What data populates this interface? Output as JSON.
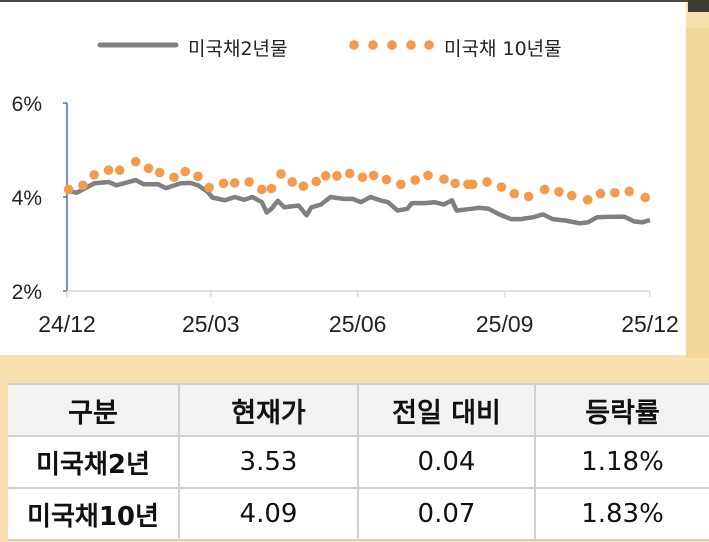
{
  "colors": {
    "series_2y": "#808080",
    "series_10y": "#f59a4a",
    "axis": "#4472c4",
    "background": "#f8dfae"
  },
  "chart_data": {
    "type": "line",
    "title": "",
    "xlabel": "",
    "ylabel": "",
    "ylim": [
      2,
      6
    ],
    "yticks": [
      "2%",
      "4%",
      "6%"
    ],
    "xticks": [
      "24/12",
      "25/03",
      "25/06",
      "25/09",
      "25/12"
    ],
    "xtick_dates": [
      "2024-12-01",
      "2025-03-01",
      "2025-06-01",
      "2025-09-01",
      "2025-12-01"
    ],
    "grid": false,
    "legend": "top",
    "series": [
      {
        "name": "미국채2년물",
        "style": "solid-line",
        "points": [
          [
            "2024-12-01",
            4.14
          ],
          [
            "2024-12-07",
            4.09
          ],
          [
            "2024-12-12",
            4.18
          ],
          [
            "2024-12-18",
            4.29
          ],
          [
            "2024-12-27",
            4.32
          ],
          [
            "2025-01-01",
            4.25
          ],
          [
            "2025-01-13",
            4.36
          ],
          [
            "2025-01-18",
            4.27
          ],
          [
            "2025-01-27",
            4.27
          ],
          [
            "2025-02-01",
            4.19
          ],
          [
            "2025-02-10",
            4.29
          ],
          [
            "2025-02-16",
            4.3
          ],
          [
            "2025-02-21",
            4.25
          ],
          [
            "2025-02-27",
            4.11
          ],
          [
            "2025-03-02",
            3.99
          ],
          [
            "2025-03-10",
            3.93
          ],
          [
            "2025-03-16",
            4.0
          ],
          [
            "2025-03-22",
            3.94
          ],
          [
            "2025-03-27",
            4.0
          ],
          [
            "2025-04-02",
            3.89
          ],
          [
            "2025-04-05",
            3.67
          ],
          [
            "2025-04-08",
            3.75
          ],
          [
            "2025-04-12",
            3.92
          ],
          [
            "2025-04-16",
            3.78
          ],
          [
            "2025-04-25",
            3.82
          ],
          [
            "2025-04-30",
            3.61
          ],
          [
            "2025-05-03",
            3.78
          ],
          [
            "2025-05-09",
            3.84
          ],
          [
            "2025-05-15",
            4.0
          ],
          [
            "2025-05-23",
            3.96
          ],
          [
            "2025-05-29",
            3.96
          ],
          [
            "2025-06-03",
            3.89
          ],
          [
            "2025-06-09",
            4.0
          ],
          [
            "2025-06-15",
            3.93
          ],
          [
            "2025-06-20",
            3.89
          ],
          [
            "2025-06-26",
            3.71
          ],
          [
            "2025-07-02",
            3.75
          ],
          [
            "2025-07-05",
            3.87
          ],
          [
            "2025-07-13",
            3.87
          ],
          [
            "2025-07-19",
            3.89
          ],
          [
            "2025-07-25",
            3.84
          ],
          [
            "2025-07-30",
            3.93
          ],
          [
            "2025-08-02",
            3.71
          ],
          [
            "2025-08-11",
            3.75
          ],
          [
            "2025-08-16",
            3.77
          ],
          [
            "2025-08-22",
            3.75
          ],
          [
            "2025-08-28",
            3.64
          ],
          [
            "2025-09-05",
            3.53
          ],
          [
            "2025-09-11",
            3.53
          ],
          [
            "2025-09-19",
            3.57
          ],
          [
            "2025-09-25",
            3.63
          ],
          [
            "2025-10-01",
            3.53
          ],
          [
            "2025-10-09",
            3.5
          ],
          [
            "2025-10-18",
            3.44
          ],
          [
            "2025-10-23",
            3.46
          ],
          [
            "2025-10-29",
            3.57
          ],
          [
            "2025-11-07",
            3.58
          ],
          [
            "2025-11-15",
            3.58
          ],
          [
            "2025-11-21",
            3.48
          ],
          [
            "2025-11-26",
            3.46
          ],
          [
            "2025-12-01",
            3.51
          ]
        ]
      },
      {
        "name": "미국채 10년물",
        "style": "dots",
        "points": [
          [
            "2024-12-02",
            4.16
          ],
          [
            "2024-12-11",
            4.25
          ],
          [
            "2024-12-18",
            4.47
          ],
          [
            "2024-12-27",
            4.57
          ],
          [
            "2025-01-03",
            4.57
          ],
          [
            "2025-01-13",
            4.75
          ],
          [
            "2025-01-21",
            4.61
          ],
          [
            "2025-01-28",
            4.52
          ],
          [
            "2025-02-06",
            4.42
          ],
          [
            "2025-02-13",
            4.54
          ],
          [
            "2025-02-21",
            4.44
          ],
          [
            "2025-02-28",
            4.2
          ],
          [
            "2025-03-09",
            4.29
          ],
          [
            "2025-03-16",
            4.3
          ],
          [
            "2025-03-25",
            4.32
          ],
          [
            "2025-04-02",
            4.16
          ],
          [
            "2025-04-08",
            4.18
          ],
          [
            "2025-04-14",
            4.49
          ],
          [
            "2025-04-21",
            4.32
          ],
          [
            "2025-04-28",
            4.23
          ],
          [
            "2025-05-06",
            4.33
          ],
          [
            "2025-05-12",
            4.45
          ],
          [
            "2025-05-19",
            4.45
          ],
          [
            "2025-05-27",
            4.5
          ],
          [
            "2025-06-04",
            4.42
          ],
          [
            "2025-06-11",
            4.46
          ],
          [
            "2025-06-19",
            4.37
          ],
          [
            "2025-06-28",
            4.27
          ],
          [
            "2025-07-07",
            4.36
          ],
          [
            "2025-07-15",
            4.46
          ],
          [
            "2025-07-25",
            4.38
          ],
          [
            "2025-08-01",
            4.29
          ],
          [
            "2025-08-09",
            4.27
          ],
          [
            "2025-08-12",
            4.27
          ],
          [
            "2025-08-21",
            4.32
          ],
          [
            "2025-08-30",
            4.21
          ],
          [
            "2025-09-07",
            4.07
          ],
          [
            "2025-09-16",
            4.01
          ],
          [
            "2025-09-26",
            4.16
          ],
          [
            "2025-10-05",
            4.11
          ],
          [
            "2025-10-13",
            4.03
          ],
          [
            "2025-10-23",
            3.94
          ],
          [
            "2025-10-31",
            4.07
          ],
          [
            "2025-11-09",
            4.09
          ],
          [
            "2025-11-18",
            4.12
          ],
          [
            "2025-11-28",
            3.99
          ]
        ]
      }
    ]
  },
  "table": {
    "headers": [
      "구분",
      "현재가",
      "전일 대비",
      "등락률"
    ],
    "rows": [
      [
        "미국채2년",
        "3.53",
        "0.04",
        "1.18%"
      ],
      [
        "미국채10년",
        "4.09",
        "0.07",
        "1.83%"
      ]
    ]
  }
}
